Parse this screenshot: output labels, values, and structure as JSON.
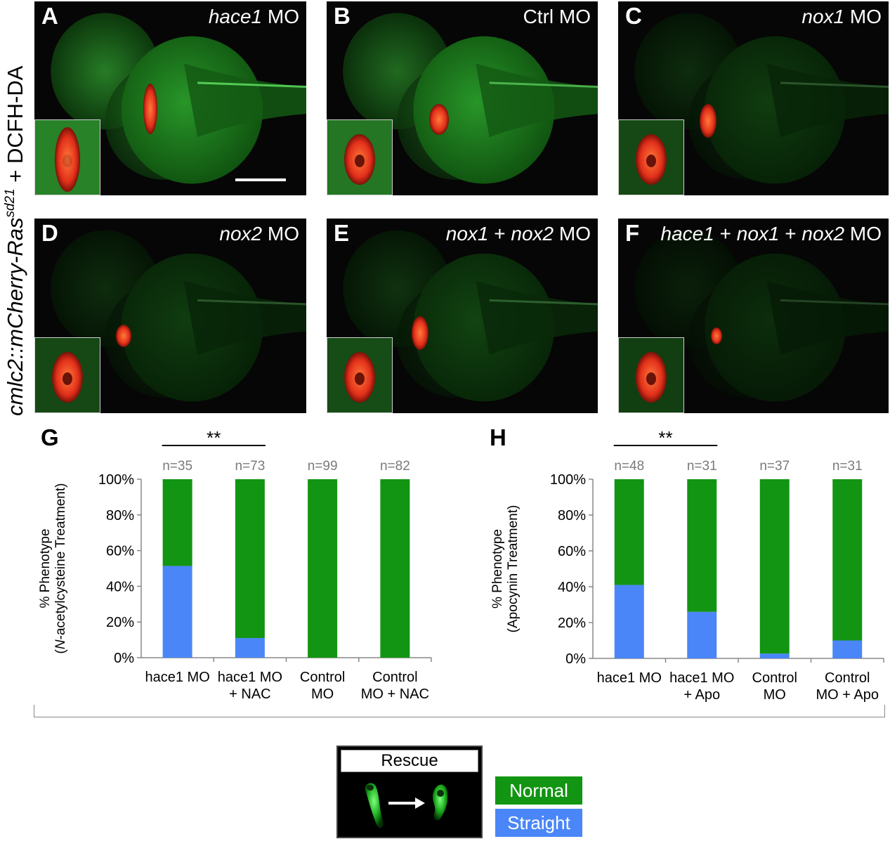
{
  "figure_label": {
    "prefix": "cmlc2::mCherry-Ras",
    "superscript": "sd21",
    "suffix": " + DCFH-DA"
  },
  "panels": [
    {
      "letter": "A",
      "title_italic": "hace1",
      "title_rest": " MO"
    },
    {
      "letter": "B",
      "title_italic": "",
      "title_rest": "Ctrl MO"
    },
    {
      "letter": "C",
      "title_italic": "nox1",
      "title_rest": " MO"
    },
    {
      "letter": "D",
      "title_italic": "nox2",
      "title_rest": " MO"
    },
    {
      "letter": "E",
      "title_italic": "nox1",
      "title_mid": " + ",
      "title_italic2": "nox2",
      "title_rest": " MO"
    },
    {
      "letter": "F",
      "title_italic": "hace1",
      "title_mid": " + ",
      "title_italic2": "nox1",
      "title_mid2": " + ",
      "title_italic3": "nox2",
      "title_rest": " MO"
    }
  ],
  "colors": {
    "normal": "#129512",
    "straight": "#4a86f7"
  },
  "chart_data": [
    {
      "panel": "G",
      "type": "bar",
      "stacked": true,
      "ylabel_line1": "% Phenotype",
      "ylabel_line2_pre": "(",
      "ylabel_line2_italic": "N",
      "ylabel_line2_post": "-acetylcysteine Treatment)",
      "ylim": [
        0,
        100
      ],
      "yticks": [
        "0%",
        "20%",
        "40%",
        "60%",
        "80%",
        "100%"
      ],
      "categories": [
        [
          "hace1 MO"
        ],
        [
          "hace1 MO",
          "+ NAC"
        ],
        [
          "Control",
          "MO"
        ],
        [
          "Control",
          "MO + NAC"
        ]
      ],
      "n_labels": [
        "n=35",
        "n=73",
        "n=99",
        "n=82"
      ],
      "significance": "**",
      "significance_between": [
        0,
        1
      ],
      "series": [
        {
          "name": "Straight",
          "values": [
            51.4,
            11.0,
            0,
            0
          ]
        },
        {
          "name": "Normal",
          "values": [
            48.6,
            89.0,
            100,
            100
          ]
        }
      ]
    },
    {
      "panel": "H",
      "type": "bar",
      "stacked": true,
      "ylabel_line1": "% Phenotype",
      "ylabel_line2_pre": "(Apocynin Treatment)",
      "ylabel_line2_italic": "",
      "ylabel_line2_post": "",
      "ylim": [
        0,
        100
      ],
      "yticks": [
        "0%",
        "20%",
        "40%",
        "60%",
        "80%",
        "100%"
      ],
      "categories": [
        [
          "hace1 MO"
        ],
        [
          "hace1 MO",
          "+ Apo"
        ],
        [
          "Control",
          "MO"
        ],
        [
          "Control",
          "MO + Apo"
        ]
      ],
      "n_labels": [
        "n=48",
        "n=31",
        "n=37",
        "n=31"
      ],
      "significance": "**",
      "significance_between": [
        0,
        1
      ],
      "series": [
        {
          "name": "Straight",
          "values": [
            41.0,
            26.0,
            2.7,
            10.0
          ]
        },
        {
          "name": "Normal",
          "values": [
            59.0,
            74.0,
            97.3,
            90.0
          ]
        }
      ]
    }
  ],
  "legend": {
    "rescue_title": "Rescue",
    "items": [
      {
        "label": "Normal",
        "color": "#129512"
      },
      {
        "label": "Straight",
        "color": "#4a86f7"
      }
    ]
  }
}
